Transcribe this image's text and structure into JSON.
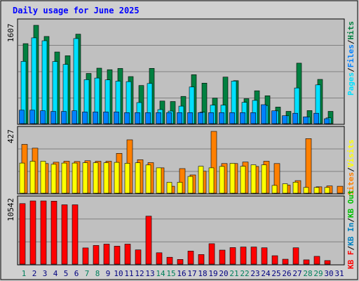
{
  "title": "Daily usage for June 2025",
  "colors": {
    "hits": "#008040",
    "files": "#00e0ff",
    "pages": "#0080ff",
    "visits": "#ffff00",
    "sites": "#ff8000",
    "kbytes": "#ff0000",
    "kb_in": "#0080c0",
    "kb_out": "#00c000",
    "weekend_day": "#00805c",
    "weekday": "#000080",
    "plot_bg": "#c0c0c0",
    "frame_bg": "#d0d0d0"
  },
  "chart_data": [
    {
      "type": "bar",
      "name": "hits-files-pages",
      "ymax_label": "1607",
      "ymax": 1607,
      "categories": [
        "1",
        "2",
        "3",
        "4",
        "5",
        "6",
        "7",
        "8",
        "9",
        "10",
        "11",
        "12",
        "13",
        "14",
        "15",
        "16",
        "17",
        "18",
        "19",
        "20",
        "21",
        "22",
        "23",
        "24",
        "25",
        "26",
        "27",
        "28",
        "29",
        "30",
        "31"
      ],
      "series": [
        {
          "name": "Hits",
          "values": [
            1307,
            1607,
            1425,
            1171,
            1110,
            1462,
            821,
            907,
            881,
            902,
            769,
            623,
            903,
            370,
            362,
            445,
            800,
            662,
            417,
            761,
            702,
            408,
            537,
            456,
            271,
            201,
            988,
            214,
            723,
            201,
            0
          ]
        },
        {
          "name": "Files",
          "values": [
            1017,
            1402,
            1354,
            1015,
            968,
            1390,
            718,
            745,
            715,
            694,
            686,
            344,
            657,
            229,
            206,
            286,
            599,
            187,
            303,
            303,
            696,
            348,
            380,
            296,
            208,
            128,
            583,
            110,
            634,
            94,
            0
          ]
        },
        {
          "name": "Pages",
          "values": [
            220,
            220,
            210,
            200,
            200,
            210,
            190,
            190,
            190,
            190,
            180,
            180,
            180,
            180,
            180,
            180,
            180,
            180,
            180,
            180,
            180,
            180,
            180,
            310,
            210,
            130,
            170,
            110,
            170,
            80,
            0
          ]
        }
      ],
      "legend": [
        "Pages",
        "Files",
        "Hits"
      ]
    },
    {
      "type": "bar",
      "name": "visits-sites",
      "ymax_label": "427",
      "ymax": 427,
      "categories": [
        "1",
        "2",
        "3",
        "4",
        "5",
        "6",
        "7",
        "8",
        "9",
        "10",
        "11",
        "12",
        "13",
        "14",
        "15",
        "16",
        "17",
        "18",
        "19",
        "20",
        "21",
        "22",
        "23",
        "24",
        "25",
        "26",
        "27",
        "28",
        "29",
        "30",
        "31"
      ],
      "series": [
        {
          "name": "Visits",
          "values": [
            208,
            221,
            221,
            200,
            208,
            208,
            210,
            210,
            210,
            213,
            206,
            210,
            195,
            175,
            75,
            75,
            116,
            186,
            175,
            185,
            206,
            186,
            196,
            196,
            54,
            65,
            76,
            40,
            40,
            40,
            0
          ]
        },
        {
          "name": "Sites",
          "values": [
            337,
            311,
            205,
            214,
            221,
            219,
            224,
            221,
            221,
            275,
            369,
            231,
            211,
            175,
            48,
            170,
            126,
            152,
            427,
            205,
            205,
            215,
            185,
            221,
            205,
            56,
            87,
            377,
            44,
            50,
            48
          ]
        }
      ],
      "legend": [
        "Visits",
        "Sites"
      ]
    },
    {
      "type": "bar",
      "name": "kbytes",
      "ymax_label": "10542",
      "ymax": 10542,
      "categories": [
        "1",
        "2",
        "3",
        "4",
        "5",
        "6",
        "7",
        "8",
        "9",
        "10",
        "11",
        "12",
        "13",
        "14",
        "15",
        "16",
        "17",
        "18",
        "19",
        "20",
        "21",
        "22",
        "23",
        "24",
        "25",
        "26",
        "27",
        "28",
        "29",
        "30",
        "31"
      ],
      "series": [
        {
          "name": "KB F",
          "values": [
            10100,
            10542,
            10542,
            10510,
            9900,
            9900,
            2700,
            3120,
            3340,
            3000,
            3340,
            2380,
            8000,
            1900,
            1150,
            780,
            2180,
            1600,
            3410,
            2340,
            2760,
            2860,
            2860,
            2730,
            1400,
            820,
            2730,
            720,
            1300,
            600,
            0
          ]
        }
      ],
      "legend": [
        "KB F",
        "KB In",
        "KB Out"
      ]
    }
  ],
  "legend_labels": {
    "pages": "Pages",
    "files": "Files",
    "hits": "Hits",
    "visits": "Visits",
    "sites": "Sites",
    "kb_out": "KB Out",
    "kb_in": "KB In",
    "kb_f": "KB F",
    "slash": "/"
  },
  "weekend_days": [
    "1",
    "7",
    "8",
    "14",
    "15",
    "21",
    "22",
    "28",
    "29"
  ]
}
